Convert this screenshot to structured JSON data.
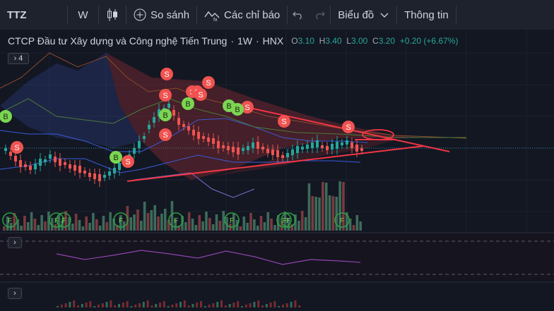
{
  "toolbar": {
    "symbol": "TTZ",
    "interval": "W",
    "compare_label": "So sánh",
    "indicators_label": "Các chỉ báo",
    "chart_type_label": "Biểu đồ",
    "info_label": "Thông tin"
  },
  "legend": {
    "title": "CTCP Đầu tư Xây dựng và Công nghệ Tiến Trung",
    "sep": "·",
    "interval": "1W",
    "exchange": "HNX",
    "open_label": "O",
    "open": "3.10",
    "high_label": "H",
    "high": "3.40",
    "low_label": "L",
    "low": "3.00",
    "close_label": "C",
    "close": "3.20",
    "change": "+0.20 (+6.67%)",
    "indicator_count": "4"
  },
  "markers": {
    "sell": "S",
    "buy": "B",
    "flag": "F"
  },
  "colors": {
    "background": "#131722",
    "toolbar": "#1e222d",
    "up": "#26a69a",
    "down": "#ef5350",
    "trendline": "#f23645",
    "volume_up": "#3d6b5a",
    "volume_down": "#7a3a40",
    "sell_marker": "#f05350",
    "buy_marker": "#7bd552",
    "flag_marker": "#2ea043"
  }
}
